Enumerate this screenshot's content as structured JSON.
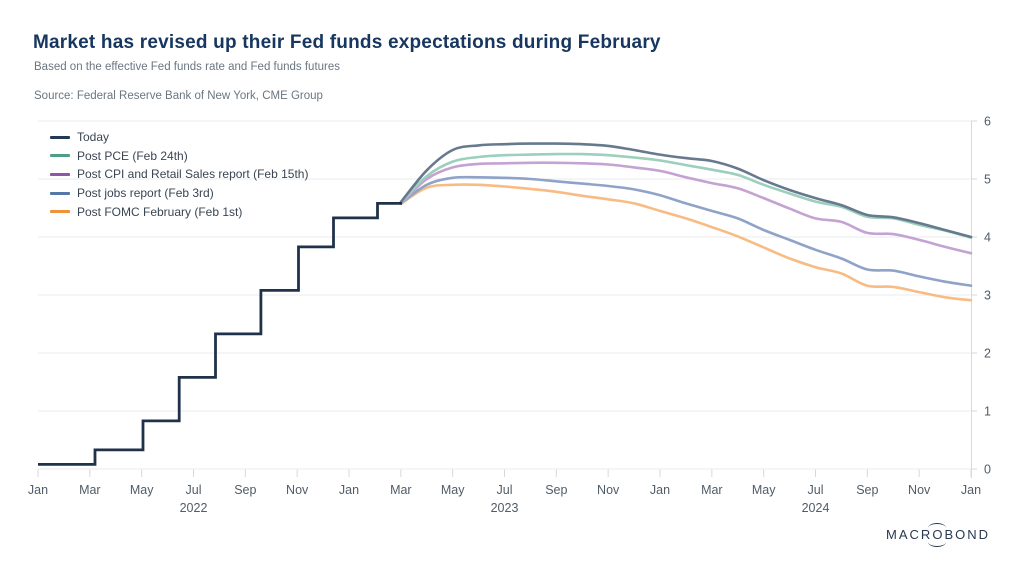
{
  "header": {
    "title": "Market has revised up their Fed funds expectations during February",
    "subtitle": "Based on the effective Fed funds rate and Fed funds futures",
    "source": "Source: Federal Reserve Bank of New York, CME Group"
  },
  "logo": {
    "pre": "MACR",
    "o": "O",
    "post": "BOND"
  },
  "colors": {
    "title": "#173760",
    "muted_text": "#6b7680",
    "grid": "#e9ebed",
    "axis": "#d6dadd",
    "tick_label": "#505c68",
    "legend_text": "#3a4552",
    "history_line": "#20324a",
    "background": "#ffffff"
  },
  "chart_data": {
    "type": "line",
    "title": "Market has revised up their Fed funds expectations during February",
    "subtitle": "Based on the effective Fed funds rate and Fed funds futures",
    "source": "Source: Federal Reserve Bank of New York, CME Group",
    "grid": "horizontal-on",
    "legend_position": "top-left-inside",
    "y_axis": {
      "side": "right",
      "min": 0,
      "max": 6,
      "ticks": [
        0,
        1,
        2,
        3,
        4,
        5,
        6
      ]
    },
    "x_axis": {
      "unit": "months-since-Jan-2022",
      "min": 0,
      "max": 36,
      "tick_positions": [
        0,
        2,
        4,
        6,
        8,
        10,
        12,
        14,
        16,
        18,
        20,
        22,
        24,
        26,
        28,
        30,
        32,
        34,
        36
      ],
      "tick_labels": [
        "Jan",
        "Mar",
        "May",
        "Jul",
        "Sep",
        "Nov",
        "Jan",
        "Mar",
        "May",
        "Jul",
        "Sep",
        "Nov",
        "Jan",
        "Mar",
        "May",
        "Jul",
        "Sep",
        "Nov",
        "Jan"
      ],
      "year_labels": [
        {
          "label": "2022",
          "position": 6
        },
        {
          "label": "2023",
          "position": 18
        },
        {
          "label": "2024",
          "position": 30
        }
      ]
    },
    "history": {
      "name": "Effective Fed funds rate (history of Today line)",
      "color": "#20324a",
      "steps": [
        [
          0,
          0.08
        ],
        [
          2.2,
          0.33
        ],
        [
          4.05,
          0.83
        ],
        [
          5.45,
          1.58
        ],
        [
          6.85,
          2.33
        ],
        [
          8.6,
          3.08
        ],
        [
          10.05,
          3.83
        ],
        [
          11.4,
          4.33
        ],
        [
          13.1,
          4.58
        ]
      ],
      "end_t": 14.05
    },
    "forward_x": [
      14,
      15,
      16,
      17,
      18,
      19,
      20,
      21,
      22,
      23,
      24,
      25,
      26,
      27,
      28,
      29,
      30,
      31,
      32,
      33,
      34,
      35,
      36
    ],
    "series": [
      {
        "name": "Today",
        "legend_color": "#233a52",
        "line_color": "#66798e",
        "values": [
          4.6,
          5.15,
          5.5,
          5.58,
          5.6,
          5.61,
          5.61,
          5.6,
          5.57,
          5.5,
          5.42,
          5.36,
          5.31,
          5.18,
          4.98,
          4.81,
          4.67,
          4.55,
          4.38,
          4.34,
          4.24,
          4.12,
          4.0
        ]
      },
      {
        "name": "Post PCE (Feb 24th)",
        "legend_color": "#4d9e8a",
        "line_color": "#9ccfbc",
        "values": [
          4.59,
          5.05,
          5.3,
          5.38,
          5.41,
          5.42,
          5.43,
          5.43,
          5.41,
          5.37,
          5.32,
          5.24,
          5.16,
          5.07,
          4.9,
          4.75,
          4.61,
          4.52,
          4.35,
          4.32,
          4.21,
          4.11,
          3.99
        ]
      },
      {
        "name": "Post CPI and Retail Sales report (Feb 15th)",
        "legend_color": "#8e57a3",
        "line_color": "#c4a2d2",
        "values": [
          4.58,
          5.0,
          5.2,
          5.26,
          5.27,
          5.28,
          5.28,
          5.27,
          5.25,
          5.2,
          5.14,
          5.03,
          4.93,
          4.84,
          4.67,
          4.49,
          4.32,
          4.26,
          4.07,
          4.05,
          3.95,
          3.83,
          3.72
        ]
      },
      {
        "name": "Post jobs report (Feb 3rd)",
        "legend_color": "#5678a9",
        "line_color": "#8fa3c9",
        "values": [
          4.58,
          4.9,
          5.02,
          5.03,
          5.02,
          5.0,
          4.96,
          4.92,
          4.88,
          4.82,
          4.72,
          4.58,
          4.45,
          4.32,
          4.12,
          3.95,
          3.78,
          3.63,
          3.44,
          3.42,
          3.32,
          3.23,
          3.16
        ]
      },
      {
        "name": "Post FOMC February (Feb 1st)",
        "legend_color": "#f0913c",
        "line_color": "#f8bb84",
        "values": [
          4.57,
          4.85,
          4.9,
          4.9,
          4.87,
          4.83,
          4.78,
          4.71,
          4.65,
          4.58,
          4.45,
          4.32,
          4.17,
          4.01,
          3.82,
          3.63,
          3.48,
          3.37,
          3.16,
          3.14,
          3.05,
          2.96,
          2.91
        ]
      }
    ]
  }
}
